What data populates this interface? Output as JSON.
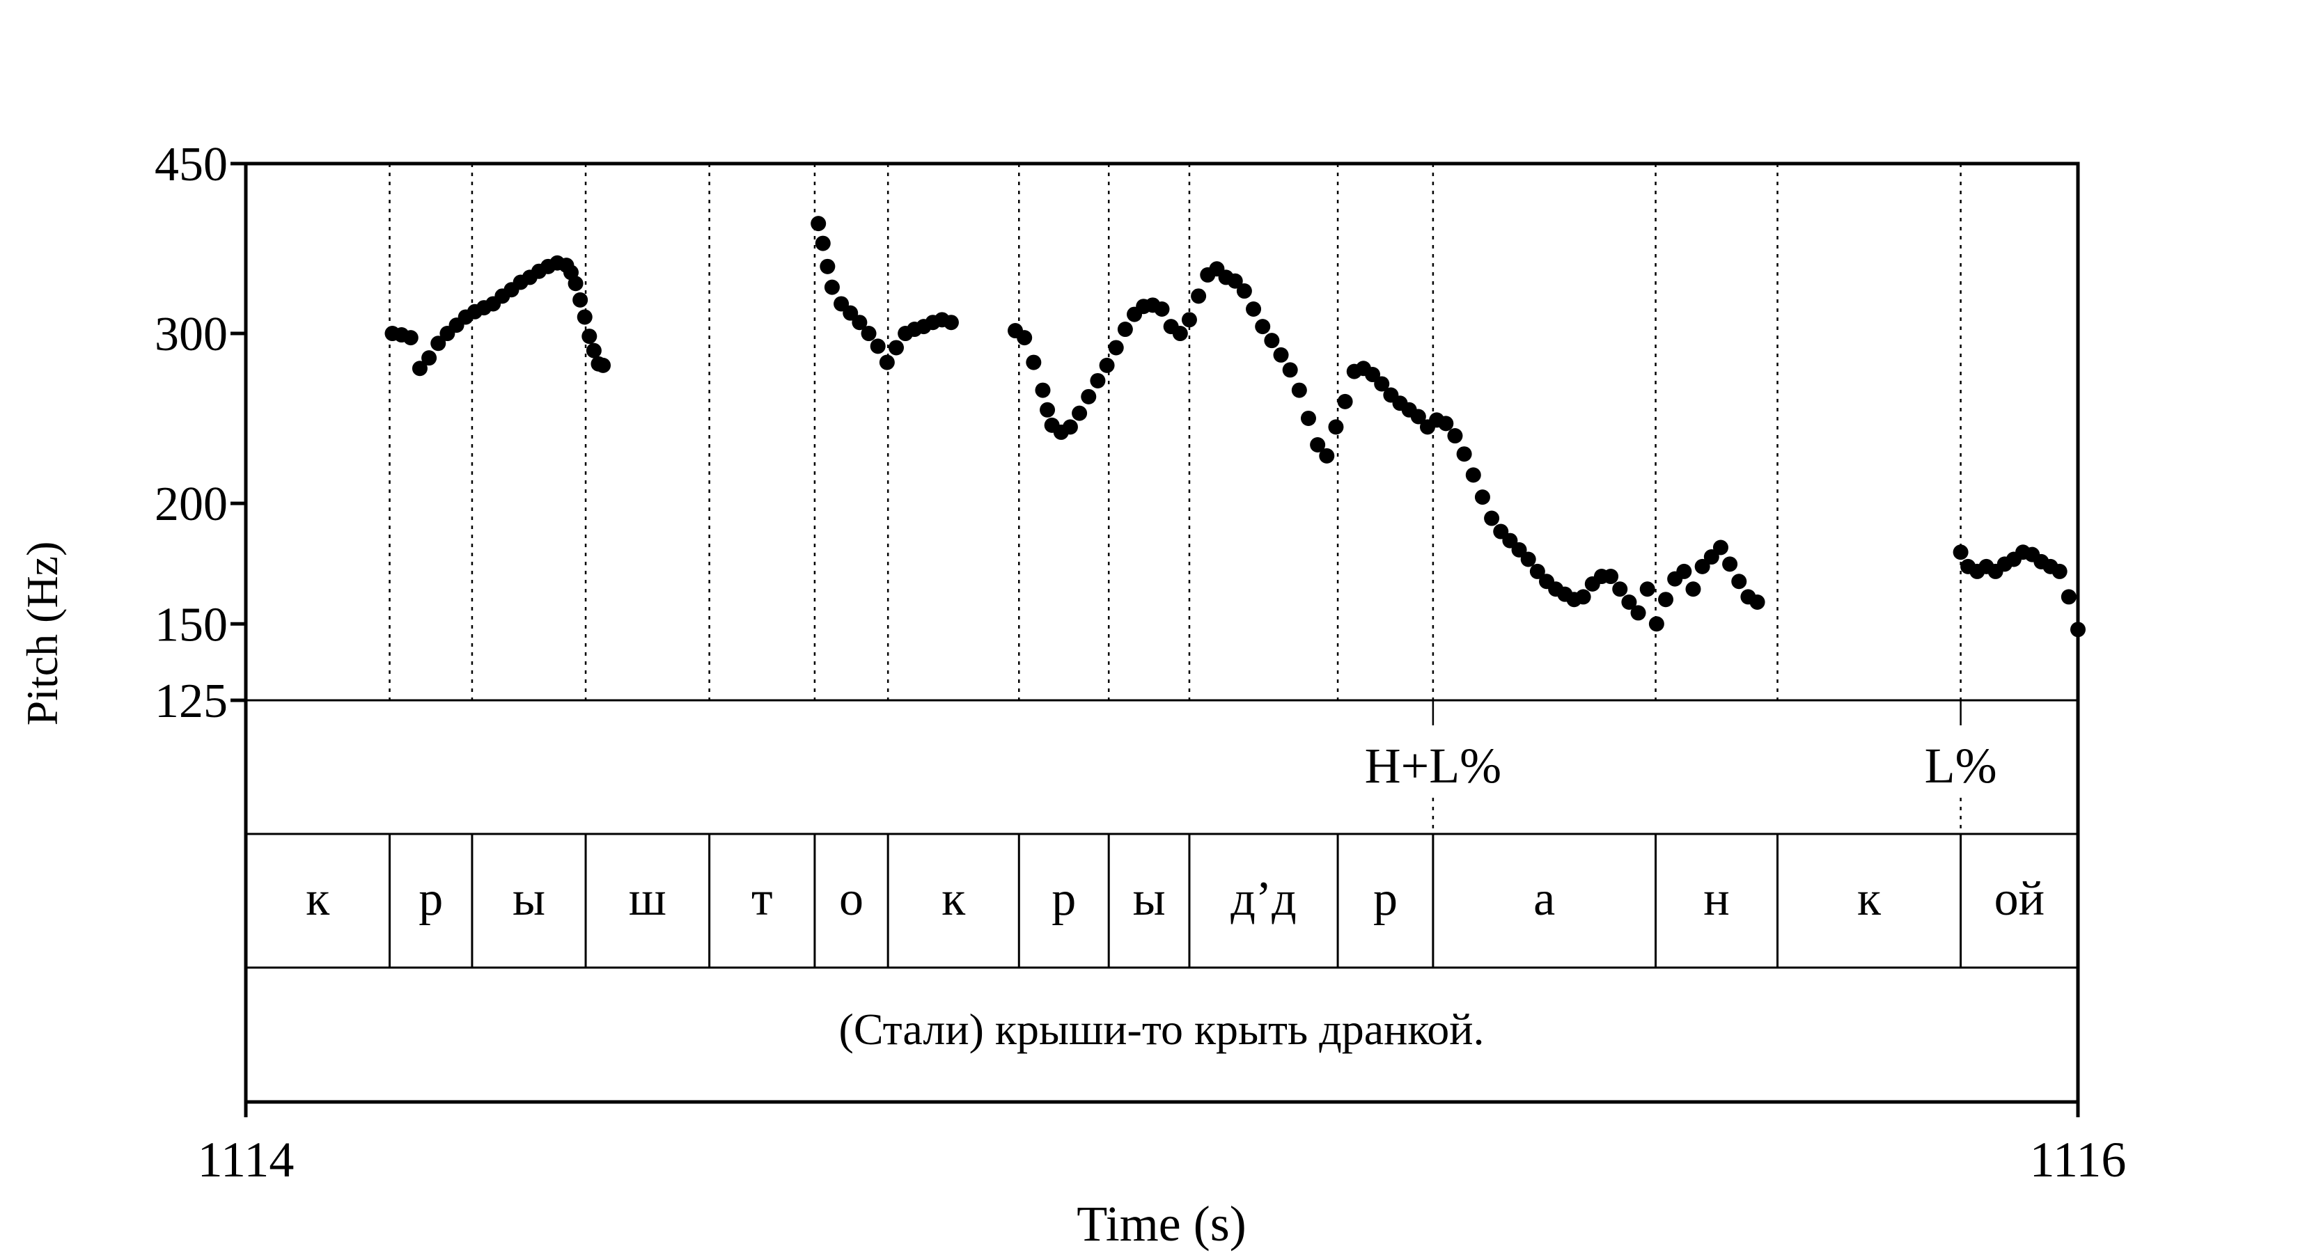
{
  "chart_data": {
    "type": "scatter",
    "title": "",
    "ylabel": "Pitch (Hz)",
    "xlabel": "Time (s)",
    "y_scale": "log",
    "ylim": [
      125,
      450
    ],
    "yticks": [
      450,
      300,
      200,
      150,
      125
    ],
    "xlim": [
      1114,
      1116
    ],
    "xticks": [
      1114,
      1116
    ],
    "grid": false,
    "boundaries": [
      1114.157,
      1114.247,
      1114.371,
      1114.506,
      1114.621,
      1114.701,
      1114.844,
      1114.942,
      1115.03,
      1115.192,
      1115.296,
      1115.539,
      1115.672,
      1115.872
    ],
    "tones": [
      {
        "time": 1115.296,
        "label": "H+L%"
      },
      {
        "time": 1115.872,
        "label": "L%"
      }
    ],
    "segments": [
      {
        "start": 1114.0,
        "end": 1114.157,
        "label": "к"
      },
      {
        "start": 1114.157,
        "end": 1114.247,
        "label": "р"
      },
      {
        "start": 1114.247,
        "end": 1114.371,
        "label": "ы"
      },
      {
        "start": 1114.371,
        "end": 1114.506,
        "label": "ш"
      },
      {
        "start": 1114.506,
        "end": 1114.621,
        "label": "т"
      },
      {
        "start": 1114.621,
        "end": 1114.701,
        "label": "о"
      },
      {
        "start": 1114.701,
        "end": 1114.844,
        "label": "к"
      },
      {
        "start": 1114.844,
        "end": 1114.942,
        "label": "р"
      },
      {
        "start": 1114.942,
        "end": 1115.03,
        "label": "ы"
      },
      {
        "start": 1115.03,
        "end": 1115.192,
        "label": "д’д"
      },
      {
        "start": 1115.192,
        "end": 1115.296,
        "label": "р"
      },
      {
        "start": 1115.296,
        "end": 1115.539,
        "label": "а"
      },
      {
        "start": 1115.539,
        "end": 1115.672,
        "label": "н"
      },
      {
        "start": 1115.672,
        "end": 1115.872,
        "label": "к"
      },
      {
        "start": 1115.872,
        "end": 1116.0,
        "label": "ой"
      }
    ],
    "sentence": "(Стали) крыши-то крыть дранкой.",
    "series": [
      {
        "values": [
          [
            1114.16,
            300
          ],
          [
            1114.17,
            299
          ],
          [
            1114.18,
            297
          ],
          [
            1114.19,
            276
          ],
          [
            1114.2,
            283
          ],
          [
            1114.21,
            293
          ],
          [
            1114.22,
            300
          ],
          [
            1114.23,
            306
          ],
          [
            1114.24,
            312
          ],
          [
            1114.25,
            316
          ],
          [
            1114.26,
            319
          ],
          [
            1114.27,
            322
          ],
          [
            1114.28,
            328
          ],
          [
            1114.29,
            333
          ],
          [
            1114.3,
            339
          ],
          [
            1114.31,
            343
          ],
          [
            1114.32,
            348
          ],
          [
            1114.33,
            352
          ],
          [
            1114.34,
            355
          ],
          [
            1114.35,
            353
          ],
          [
            1114.355,
            347
          ],
          [
            1114.36,
            338
          ],
          [
            1114.365,
            325
          ],
          [
            1114.37,
            312
          ],
          [
            1114.375,
            298
          ],
          [
            1114.38,
            288
          ],
          [
            1114.385,
            279
          ],
          [
            1114.39,
            278
          ],
          [
            1114.625,
            390
          ],
          [
            1114.63,
            372
          ],
          [
            1114.635,
            352
          ],
          [
            1114.64,
            335
          ],
          [
            1114.65,
            322
          ],
          [
            1114.66,
            315
          ],
          [
            1114.67,
            308
          ],
          [
            1114.68,
            300
          ],
          [
            1114.69,
            291
          ],
          [
            1114.7,
            280
          ],
          [
            1114.71,
            290
          ],
          [
            1114.72,
            300
          ],
          [
            1114.73,
            303
          ],
          [
            1114.74,
            305
          ],
          [
            1114.75,
            308
          ],
          [
            1114.76,
            310
          ],
          [
            1114.77,
            308
          ],
          [
            1114.84,
            302
          ],
          [
            1114.85,
            297
          ],
          [
            1114.86,
            280
          ],
          [
            1114.87,
            262
          ],
          [
            1114.875,
            250
          ],
          [
            1114.88,
            241
          ],
          [
            1114.89,
            237
          ],
          [
            1114.9,
            240
          ],
          [
            1114.91,
            248
          ],
          [
            1114.92,
            258
          ],
          [
            1114.93,
            268
          ],
          [
            1114.94,
            278
          ],
          [
            1114.95,
            290
          ],
          [
            1114.96,
            303
          ],
          [
            1114.97,
            314
          ],
          [
            1114.98,
            320
          ],
          [
            1114.99,
            321
          ],
          [
            1115.0,
            318
          ],
          [
            1115.01,
            305
          ],
          [
            1115.02,
            300
          ],
          [
            1115.03,
            310
          ],
          [
            1115.04,
            328
          ],
          [
            1115.05,
            345
          ],
          [
            1115.06,
            350
          ],
          [
            1115.07,
            343
          ],
          [
            1115.08,
            340
          ],
          [
            1115.09,
            332
          ],
          [
            1115.1,
            318
          ],
          [
            1115.11,
            305
          ],
          [
            1115.12,
            295
          ],
          [
            1115.13,
            285
          ],
          [
            1115.14,
            275
          ],
          [
            1115.15,
            262
          ],
          [
            1115.16,
            245
          ],
          [
            1115.17,
            230
          ],
          [
            1115.18,
            224
          ],
          [
            1115.19,
            240
          ],
          [
            1115.2,
            255
          ],
          [
            1115.21,
            274
          ],
          [
            1115.22,
            276
          ],
          [
            1115.23,
            272
          ],
          [
            1115.24,
            266
          ],
          [
            1115.25,
            259
          ],
          [
            1115.26,
            254
          ],
          [
            1115.27,
            250
          ],
          [
            1115.28,
            246
          ],
          [
            1115.29,
            240
          ],
          [
            1115.3,
            244
          ],
          [
            1115.31,
            242
          ],
          [
            1115.32,
            235
          ],
          [
            1115.33,
            225
          ],
          [
            1115.34,
            214
          ],
          [
            1115.35,
            203
          ],
          [
            1115.36,
            193
          ],
          [
            1115.37,
            187
          ],
          [
            1115.38,
            183
          ],
          [
            1115.39,
            179
          ],
          [
            1115.4,
            175
          ],
          [
            1115.41,
            170
          ],
          [
            1115.42,
            166
          ],
          [
            1115.43,
            163
          ],
          [
            1115.44,
            161
          ],
          [
            1115.45,
            159
          ],
          [
            1115.46,
            160
          ],
          [
            1115.47,
            165
          ],
          [
            1115.48,
            168
          ],
          [
            1115.49,
            168
          ],
          [
            1115.5,
            163
          ],
          [
            1115.51,
            158
          ],
          [
            1115.52,
            154
          ],
          [
            1115.53,
            163
          ],
          [
            1115.54,
            150
          ],
          [
            1115.55,
            159
          ],
          [
            1115.56,
            167
          ],
          [
            1115.57,
            170
          ],
          [
            1115.58,
            163
          ],
          [
            1115.59,
            172
          ],
          [
            1115.6,
            176
          ],
          [
            1115.61,
            180
          ],
          [
            1115.62,
            173
          ],
          [
            1115.63,
            166
          ],
          [
            1115.64,
            160
          ],
          [
            1115.65,
            158
          ],
          [
            1115.872,
            178
          ],
          [
            1115.88,
            172
          ],
          [
            1115.89,
            170
          ],
          [
            1115.9,
            172
          ],
          [
            1115.91,
            170
          ],
          [
            1115.92,
            173
          ],
          [
            1115.93,
            175
          ],
          [
            1115.94,
            178
          ],
          [
            1115.95,
            177
          ],
          [
            1115.96,
            174
          ],
          [
            1115.97,
            172
          ],
          [
            1115.98,
            170
          ],
          [
            1115.99,
            160
          ],
          [
            1116.0,
            148
          ]
        ],
        "color": "#000000"
      }
    ]
  }
}
